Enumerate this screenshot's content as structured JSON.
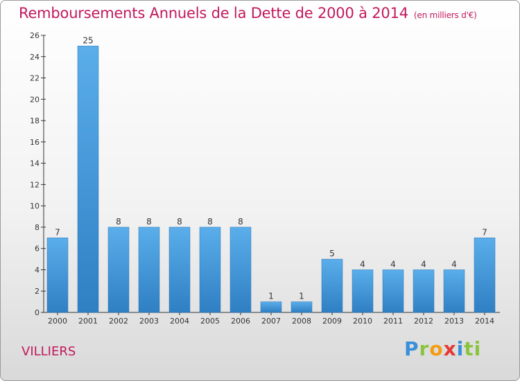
{
  "header": {
    "title": "Remboursements Annuels de la Dette de 2000 à 2014",
    "subtitle": "(en milliers d'€)"
  },
  "footer": {
    "commune": "VILLIERS",
    "logo": [
      "P",
      "r",
      "o",
      "x",
      "i",
      "ti"
    ]
  },
  "colors": {
    "title": "#c2185b",
    "bar_top": "#5aaeea",
    "bar_bottom": "#2f7fc3"
  },
  "chart_data": {
    "type": "bar",
    "title": "Remboursements Annuels de la Dette de 2000 à 2014",
    "xlabel": "",
    "ylabel": "",
    "categories": [
      "2000",
      "2001",
      "2002",
      "2003",
      "2004",
      "2005",
      "2006",
      "2007",
      "2008",
      "2009",
      "2010",
      "2011",
      "2012",
      "2013",
      "2014"
    ],
    "values": [
      7,
      25,
      8,
      8,
      8,
      8,
      8,
      1,
      1,
      5,
      4,
      4,
      4,
      4,
      7
    ],
    "data_labels": [
      "7",
      "25",
      "8",
      "8",
      "8",
      "8",
      "8",
      "1",
      "1",
      "5",
      "4",
      "4",
      "4",
      "4",
      "7"
    ],
    "ylim": [
      0,
      26
    ],
    "yticks": [
      0,
      2,
      4,
      6,
      8,
      10,
      12,
      14,
      16,
      18,
      20,
      22,
      24,
      26
    ],
    "grid": false,
    "legend": "none"
  }
}
